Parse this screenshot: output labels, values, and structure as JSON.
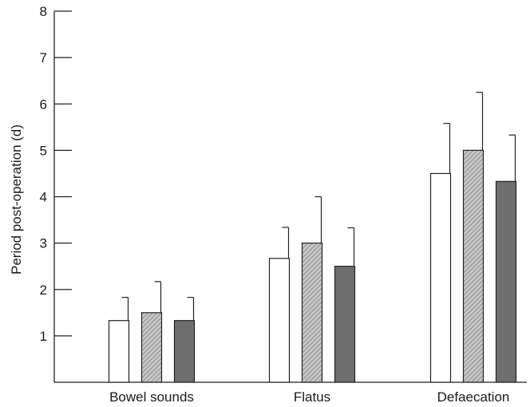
{
  "chart_data": {
    "type": "bar",
    "title": "",
    "xlabel": "",
    "ylabel": "Period post-operation (d)",
    "ylim": [
      0,
      8
    ],
    "yticks": [
      1,
      2,
      3,
      4,
      5,
      6,
      7,
      8
    ],
    "grid": false,
    "legend": "none",
    "categories": [
      "Bowel sounds",
      "Flatus",
      "Defaecation"
    ],
    "series": [
      {
        "values": [
          1.33,
          2.67,
          4.5
        ],
        "errors": [
          0.5,
          0.67,
          1.08
        ],
        "fill": "white"
      },
      {
        "values": [
          1.5,
          3.0,
          5.0
        ],
        "errors": [
          0.67,
          1.0,
          1.25
        ],
        "fill": "hatched"
      },
      {
        "values": [
          1.33,
          2.5,
          4.33
        ],
        "errors": [
          0.5,
          0.83,
          1.0
        ],
        "fill": "dark"
      }
    ],
    "colors": {
      "white": "#ffffff",
      "hatched": "#b4b4b4",
      "dark": "#6e6e6e",
      "axis": "#222222"
    }
  }
}
